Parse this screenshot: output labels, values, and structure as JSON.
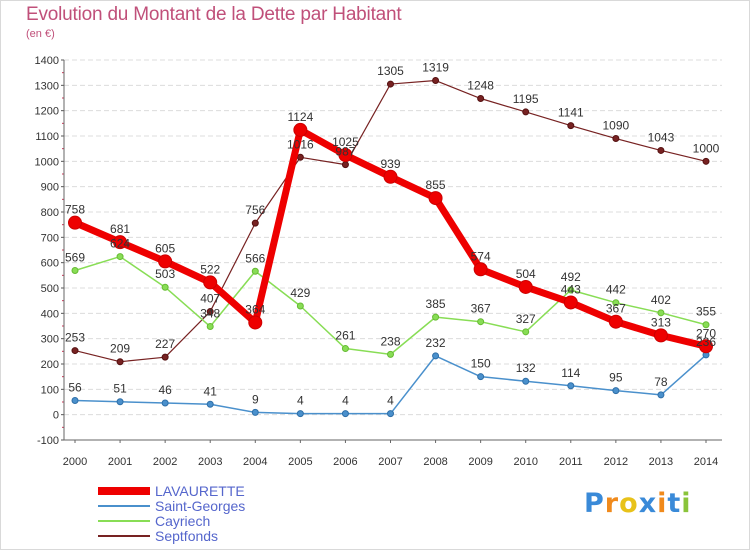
{
  "title": "Evolution du Montant de la Dette par Habitant",
  "unit": "(en €)",
  "logo": {
    "text": "Proxiti",
    "colors": [
      "#3a8ad8",
      "#f08a1c",
      "#e8c21a",
      "#3a8ad8",
      "#f08a1c",
      "#3a8ad8",
      "#8ac43a"
    ]
  },
  "chart_data": {
    "type": "line",
    "title": "Evolution du Montant de la Dette par Habitant",
    "ylabel": "(en €)",
    "x": [
      "2000",
      "2001",
      "2002",
      "2003",
      "2004",
      "2005",
      "2006",
      "2007",
      "2008",
      "2009",
      "2010",
      "2011",
      "2012",
      "2013",
      "2014"
    ],
    "ylim": [
      -100,
      1400
    ],
    "yticks": [
      "-100",
      "0",
      "100",
      "200",
      "300",
      "400",
      "500",
      "600",
      "700",
      "800",
      "900",
      "1000",
      "1100",
      "1200",
      "1300",
      "1400"
    ],
    "grid": "horizontal",
    "legend_position": "bottom-left",
    "series": [
      {
        "name": "LAVAURETTE",
        "color": "#ee0000",
        "values": [
          758,
          681,
          605,
          522,
          364,
          1124,
          1025,
          939,
          855,
          574,
          504,
          443,
          367,
          313,
          270
        ],
        "labels": [
          "758",
          "681",
          "605",
          "522",
          "364",
          "1124",
          "1025",
          "939",
          "855",
          "574",
          "504",
          "443",
          "367",
          "313",
          "270"
        ]
      },
      {
        "name": "Saint-Georges",
        "color": "#4a90cc",
        "values": [
          56,
          51,
          46,
          41,
          9,
          4,
          4,
          4,
          232,
          150,
          132,
          114,
          95,
          78,
          236
        ],
        "labels": [
          "56",
          "51",
          "46",
          "41",
          "9",
          "4",
          "4",
          "4",
          "232",
          "150",
          "132",
          "114",
          "95",
          "78",
          "236"
        ]
      },
      {
        "name": "Cayriech",
        "color": "#88dd55",
        "values": [
          569,
          624,
          503,
          348,
          566,
          429,
          261,
          238,
          385,
          367,
          327,
          492,
          442,
          402,
          355
        ],
        "labels": [
          "569",
          "624",
          "503",
          "348",
          "566",
          "429",
          "261",
          "238",
          "385",
          "367",
          "327",
          "492",
          "442",
          "402",
          "355"
        ]
      },
      {
        "name": "Septfonds",
        "color": "#772222",
        "values": [
          253,
          209,
          227,
          407,
          756,
          1016,
          987,
          1305,
          1319,
          1248,
          1195,
          1141,
          1090,
          1043,
          1000
        ],
        "labels": [
          "253",
          "209",
          "227",
          "407",
          "756",
          "1016",
          "987",
          "1305",
          "1319",
          "1248",
          "1195",
          "1141",
          "1090",
          "1043",
          "1000"
        ]
      }
    ]
  }
}
